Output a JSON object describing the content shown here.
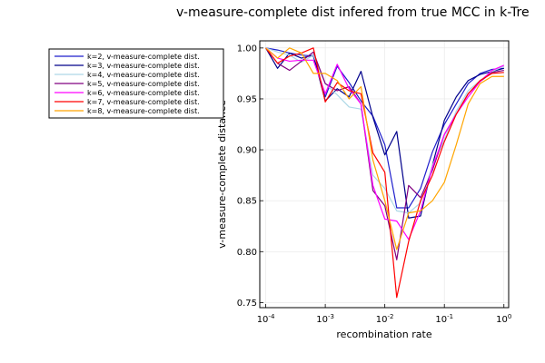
{
  "chart_data": {
    "type": "line",
    "title": "v-measure-complete dist infered from true MCC in k-Tre",
    "xlabel": "recombination rate",
    "ylabel": "v-measure-complete distance",
    "xscale": "log10",
    "xlim_log10": [
      -4.1,
      0.08
    ],
    "ylim": [
      0.745,
      1.007
    ],
    "grid": true,
    "legend": "outside-left-top",
    "x_ticks": [
      {
        "exp": "-4",
        "v": -4
      },
      {
        "exp": "-3",
        "v": -3
      },
      {
        "exp": "-2",
        "v": -2
      },
      {
        "exp": "-1",
        "v": -1
      },
      {
        "exp": "0",
        "v": 0
      }
    ],
    "y_ticks": [
      {
        "label": "1.00",
        "v": 1.0
      },
      {
        "label": "0.95",
        "v": 0.95
      },
      {
        "label": "0.90",
        "v": 0.9
      },
      {
        "label": "0.85",
        "v": 0.85
      },
      {
        "label": "0.80",
        "v": 0.8
      },
      {
        "label": "0.75",
        "v": 0.75
      }
    ],
    "x": [
      0.0001,
      0.000158,
      0.000251,
      0.000398,
      0.000631,
      0.001,
      0.001585,
      0.002512,
      0.003981,
      0.00631,
      0.01,
      0.015849,
      0.025119,
      0.039811,
      0.063096,
      0.1,
      0.158489,
      0.251189,
      0.398107,
      0.630957,
      1.0
    ],
    "series": [
      {
        "name": "k=2, v-measure-complete dist.",
        "color": "#1f1fcc",
        "values": [
          1.0,
          0.998,
          0.995,
          0.993,
          0.992,
          0.952,
          0.982,
          0.966,
          0.948,
          0.933,
          0.905,
          0.843,
          0.843,
          0.862,
          0.898,
          0.925,
          0.945,
          0.965,
          0.975,
          0.979,
          0.98
        ]
      },
      {
        "name": "k=3, v-measure-complete dist.",
        "color": "#00008b",
        "values": [
          1.0,
          0.98,
          0.995,
          0.99,
          0.993,
          0.948,
          0.96,
          0.952,
          0.977,
          0.932,
          0.895,
          0.918,
          0.833,
          0.835,
          0.885,
          0.929,
          0.952,
          0.968,
          0.974,
          0.977,
          0.98
        ]
      },
      {
        "name": "k=4, v-measure-complete dist.",
        "color": "#add8e6",
        "values": [
          1.0,
          0.996,
          0.993,
          0.986,
          0.993,
          0.965,
          0.954,
          0.942,
          0.94,
          0.875,
          0.862,
          0.84,
          0.838,
          0.848,
          0.885,
          0.91,
          0.938,
          0.958,
          0.968,
          0.977,
          0.982
        ]
      },
      {
        "name": "k=5, v-measure-complete dist.",
        "color": "#800080",
        "values": [
          1.0,
          0.985,
          0.978,
          0.987,
          0.996,
          0.965,
          0.958,
          0.962,
          0.945,
          0.86,
          0.845,
          0.792,
          0.865,
          0.853,
          0.88,
          0.915,
          0.935,
          0.955,
          0.967,
          0.976,
          0.978
        ]
      },
      {
        "name": "k=6, v-measure-complete dist.",
        "color": "#ff00ff",
        "values": [
          1.0,
          0.99,
          0.987,
          0.988,
          0.988,
          0.955,
          0.984,
          0.96,
          0.945,
          0.865,
          0.832,
          0.83,
          0.812,
          0.84,
          0.883,
          0.915,
          0.935,
          0.952,
          0.967,
          0.978,
          0.983
        ]
      },
      {
        "name": "k=7, v-measure-complete dist.",
        "color": "#ff0000",
        "values": [
          1.0,
          0.985,
          0.992,
          0.995,
          1.0,
          0.947,
          0.966,
          0.958,
          0.955,
          0.897,
          0.878,
          0.755,
          0.81,
          0.85,
          0.875,
          0.908,
          0.935,
          0.955,
          0.968,
          0.975,
          0.976
        ]
      },
      {
        "name": "k=8, v-measure-complete dist.",
        "color": "#ffa500",
        "values": [
          1.0,
          0.99,
          1.0,
          0.995,
          0.975,
          0.975,
          0.968,
          0.95,
          0.962,
          0.89,
          0.85,
          0.802,
          0.838,
          0.84,
          0.85,
          0.868,
          0.905,
          0.945,
          0.965,
          0.972,
          0.972
        ]
      }
    ]
  }
}
